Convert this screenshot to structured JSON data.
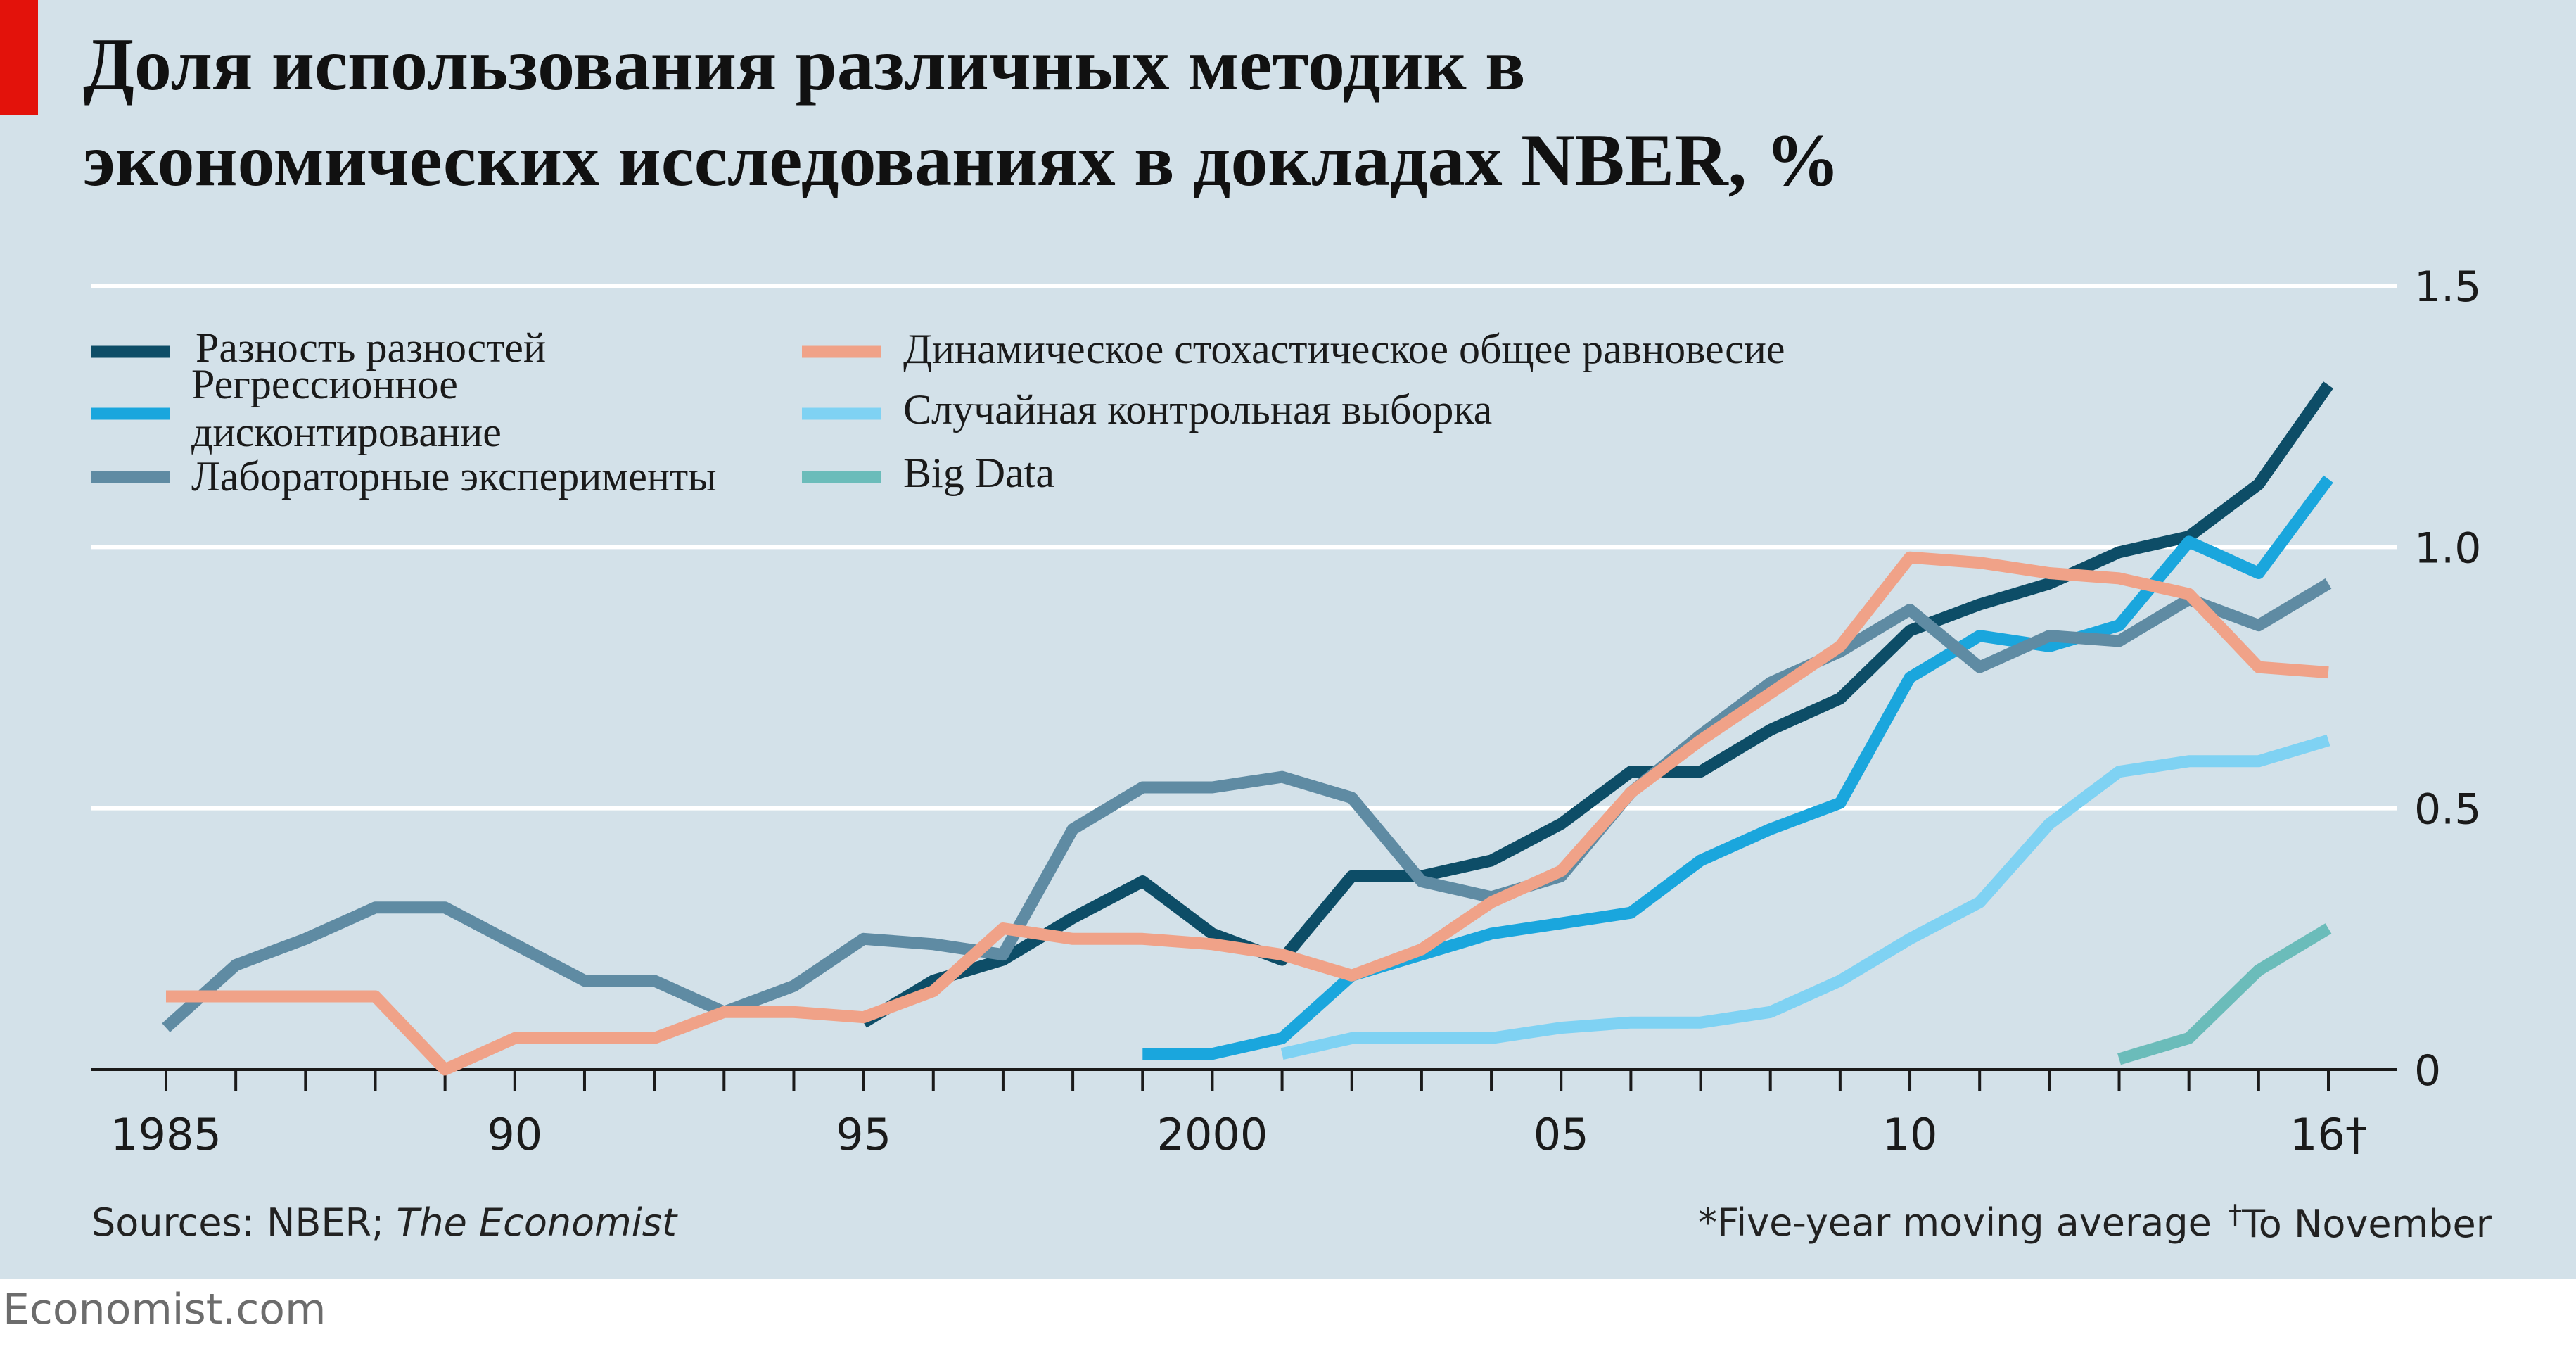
{
  "title_lines": [
    "Доля использования различных методик в",
    "экономических исследованиях в докладах NBER, %"
  ],
  "colors": {
    "background": "#d3e1e9",
    "accent": "#e3120b",
    "diff_in_diff": "#0d4d67",
    "regression_discontinuity": "#1aa6dd",
    "lab_experiments": "#5f8ba3",
    "dsge": "#f0a288",
    "rct": "#7fd2f3",
    "big_data": "#6bbcba"
  },
  "chart_data": {
    "type": "line",
    "title": "Доля использования различных методик в экономических исследованиях в докладах NBER, %",
    "xlabel": "",
    "ylabel": "",
    "xlim": [
      1985,
      2016
    ],
    "ylim": [
      0,
      1.5
    ],
    "y_ticks": [
      0,
      0.5,
      1.0,
      1.5
    ],
    "y_tick_labels": [
      "0",
      "0.5",
      "1.0",
      "1.5"
    ],
    "x_tick_labels": [
      {
        "year": 1985,
        "label": "1985"
      },
      {
        "year": 1990,
        "label": "90"
      },
      {
        "year": 1995,
        "label": "95"
      },
      {
        "year": 2000,
        "label": "2000"
      },
      {
        "year": 2005,
        "label": "05"
      },
      {
        "year": 2010,
        "label": "10"
      },
      {
        "year": 2016,
        "label": "16†"
      }
    ],
    "grid": true,
    "legend_position": "top-left",
    "series": [
      {
        "name": "Разность разностей",
        "color_key": "diff_in_diff",
        "x": [
          1995,
          1996,
          1997,
          1998,
          1999,
          2000,
          2001,
          2002,
          2003,
          2004,
          2005,
          2006,
          2007,
          2008,
          2009,
          2010,
          2011,
          2012,
          2013,
          2014,
          2015,
          2016
        ],
        "y": [
          0.09,
          0.17,
          0.21,
          0.29,
          0.36,
          0.26,
          0.21,
          0.37,
          0.37,
          0.4,
          0.47,
          0.57,
          0.57,
          0.65,
          0.71,
          0.84,
          0.89,
          0.93,
          0.99,
          1.02,
          1.12,
          1.31
        ]
      },
      {
        "name": "Регрессионное дисконтирование",
        "color_key": "regression_discontinuity",
        "x": [
          1999,
          2000,
          2001,
          2002,
          2003,
          2004,
          2005,
          2006,
          2007,
          2008,
          2009,
          2010,
          2011,
          2012,
          2013,
          2014,
          2015,
          2016
        ],
        "y": [
          0.03,
          0.03,
          0.06,
          0.18,
          0.22,
          0.26,
          0.28,
          0.3,
          0.4,
          0.46,
          0.51,
          0.75,
          0.83,
          0.81,
          0.85,
          1.01,
          0.95,
          1.13
        ]
      },
      {
        "name": "Лабораторные эксперименты",
        "color_key": "lab_experiments",
        "x": [
          1985,
          1986,
          1987,
          1988,
          1989,
          1990,
          1991,
          1992,
          1993,
          1994,
          1995,
          1996,
          1997,
          1998,
          1999,
          2000,
          2001,
          2002,
          2003,
          2004,
          2005,
          2006,
          2007,
          2008,
          2009,
          2010,
          2011,
          2012,
          2013,
          2014,
          2015,
          2016
        ],
        "y": [
          0.08,
          0.2,
          0.25,
          0.31,
          0.31,
          0.24,
          0.17,
          0.17,
          0.11,
          0.16,
          0.25,
          0.24,
          0.22,
          0.46,
          0.54,
          0.54,
          0.56,
          0.52,
          0.36,
          0.33,
          0.37,
          0.53,
          0.64,
          0.74,
          0.8,
          0.88,
          0.77,
          0.83,
          0.82,
          0.9,
          0.85,
          0.93
        ]
      },
      {
        "name": "Динамическое стохастическое общее равновесие",
        "color_key": "dsge",
        "x": [
          1985,
          1986,
          1987,
          1988,
          1989,
          1990,
          1991,
          1992,
          1993,
          1994,
          1995,
          1996,
          1997,
          1998,
          1999,
          2000,
          2001,
          2002,
          2003,
          2004,
          2005,
          2006,
          2007,
          2008,
          2009,
          2010,
          2011,
          2012,
          2013,
          2014,
          2015,
          2016
        ],
        "y": [
          0.14,
          0.14,
          0.14,
          0.14,
          0.0,
          0.06,
          0.06,
          0.06,
          0.11,
          0.11,
          0.1,
          0.15,
          0.27,
          0.25,
          0.25,
          0.24,
          0.22,
          0.18,
          0.23,
          0.32,
          0.38,
          0.53,
          0.63,
          0.72,
          0.81,
          0.98,
          0.97,
          0.95,
          0.94,
          0.91,
          0.77,
          0.76
        ]
      },
      {
        "name": "Случайная контрольная выборка",
        "color_key": "rct",
        "x": [
          2001,
          2002,
          2003,
          2004,
          2005,
          2006,
          2007,
          2008,
          2009,
          2010,
          2011,
          2012,
          2013,
          2014,
          2015,
          2016
        ],
        "y": [
          0.03,
          0.06,
          0.06,
          0.06,
          0.08,
          0.09,
          0.09,
          0.11,
          0.17,
          0.25,
          0.32,
          0.47,
          0.57,
          0.59,
          0.59,
          0.63
        ]
      },
      {
        "name": "Big Data",
        "color_key": "big_data",
        "x": [
          2013,
          2014,
          2015,
          2016
        ],
        "y": [
          0.02,
          0.06,
          0.19,
          0.27
        ]
      }
    ]
  },
  "legend": [
    {
      "label": "Разность разностей",
      "color_key": "diff_in_diff"
    },
    {
      "label": "Регрессионное дисконтирование",
      "line1": "Регрессионное",
      "line2": "дисконтирование",
      "color_key": "regression_discontinuity"
    },
    {
      "label": "Лабораторные эксперименты",
      "color_key": "lab_experiments"
    },
    {
      "label": "Динамическое стохастическое общее равновесие",
      "color_key": "dsge"
    },
    {
      "label": "Случайная контрольная выборка",
      "color_key": "rct"
    },
    {
      "label": "Big Data",
      "color_key": "big_data"
    }
  ],
  "footer": {
    "sources_prefix": "Sources: NBER; ",
    "sources_italic": "The Economist",
    "note_moving_average": "*Five-year moving average",
    "note_dagger": "†",
    "note_to_november": "To November",
    "credit": "Economist.com"
  }
}
